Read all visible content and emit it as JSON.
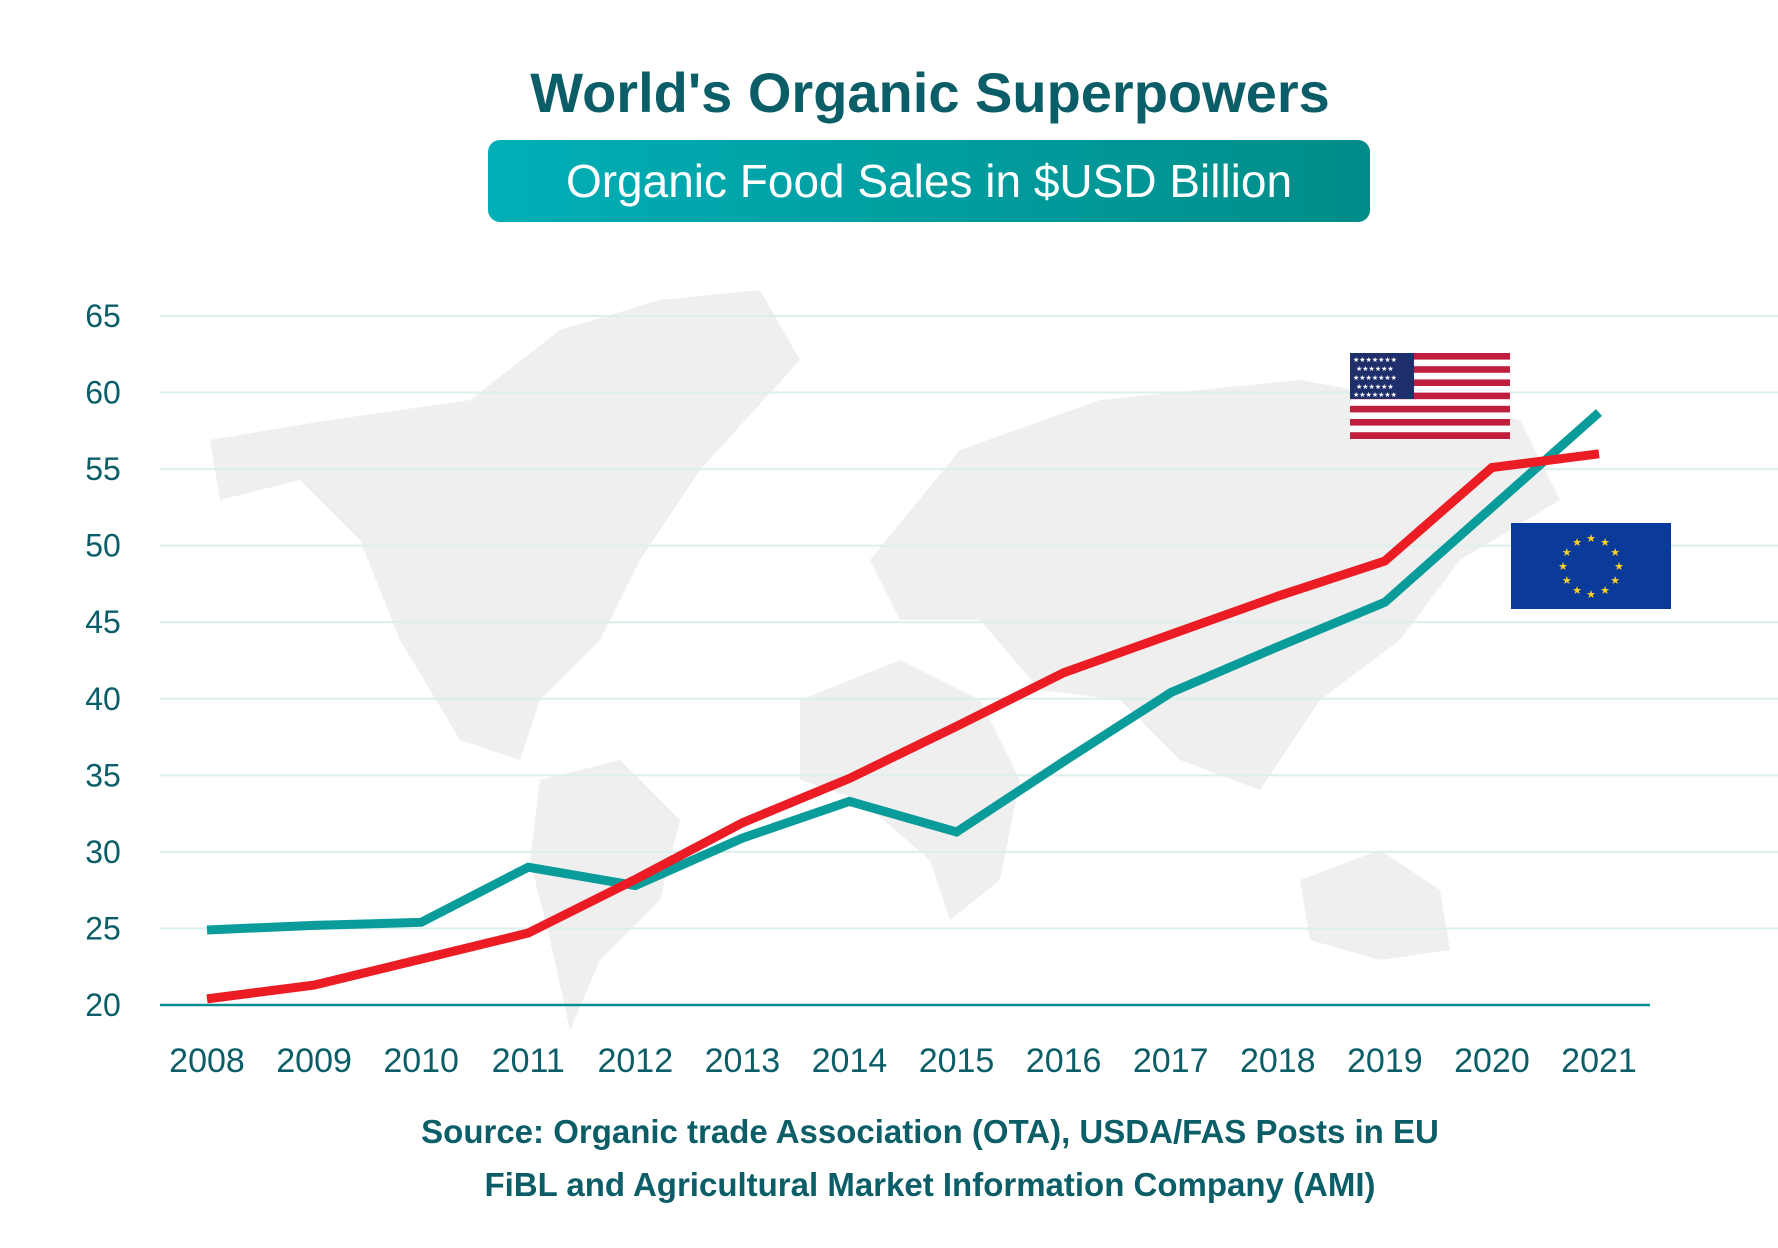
{
  "chart_data": {
    "type": "line",
    "title": "World's Organic Superpowers",
    "subtitle": "Organic Food Sales in $USD Billion",
    "xlabel": "",
    "ylabel": "",
    "x": [
      "2008",
      "2009",
      "2010",
      "2011",
      "2012",
      "2013",
      "2014",
      "2015",
      "2016",
      "2017",
      "2018",
      "2019",
      "2020",
      "2021"
    ],
    "ylim": [
      20,
      65
    ],
    "yticks": [
      "20",
      "25",
      "30",
      "35",
      "40",
      "45",
      "50",
      "55",
      "60",
      "65"
    ],
    "grid": true,
    "series": [
      {
        "flag": "eu-flag-icon",
        "color": "#0a9c9a",
        "values": [
          24.9,
          25.2,
          25.4,
          29.0,
          27.8,
          30.9,
          33.3,
          31.3,
          35.9,
          40.4,
          43.4,
          46.3,
          52.5,
          58.7
        ]
      },
      {
        "flag": "us-flag-icon",
        "color": "#ec1c24",
        "values": [
          20.4,
          21.3,
          23.0,
          24.7,
          28.2,
          31.9,
          34.8,
          38.2,
          41.7,
          44.2,
          46.7,
          49.0,
          55.1,
          56.0
        ]
      }
    ],
    "source_lines": [
      "Source: Organic trade Association (OTA), USDA/FAS Posts in EU",
      "FiBL and Agricultural Market Information Company (AMI)"
    ]
  },
  "colors": {
    "title": "#0b5e67",
    "badge_start": "#00afb7",
    "badge_end": "#008c88",
    "grid": "#dcefee",
    "map": "#efefef"
  }
}
